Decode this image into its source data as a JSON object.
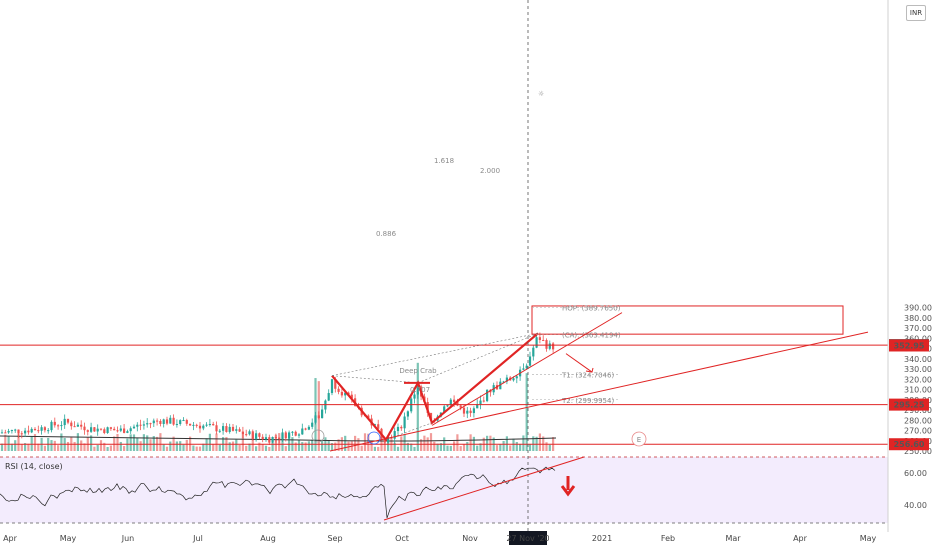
{
  "chart_data": {
    "type": "candlestick",
    "currency": "INR",
    "y_axis": {
      "ticks": [
        "390.00",
        "380.00",
        "370.00",
        "360.00",
        "350.00",
        "340.00",
        "330.00",
        "320.00",
        "310.00",
        "300.00",
        "290.00",
        "280.00",
        "270.00",
        "260.00",
        "250.00"
      ],
      "range": [
        245,
        395
      ]
    },
    "price_labels": [
      {
        "value": 353.3,
        "text": "353.30",
        "color": "#4a4a4a"
      },
      {
        "value": 352.95,
        "text": "352.95",
        "color": "#e02424"
      },
      {
        "value": 295.25,
        "text": "295.25",
        "color": "#e02424"
      },
      {
        "value": 256.6,
        "text": "256.60",
        "color": "#e02424"
      }
    ],
    "horizontal_levels": [
      353.3,
      295.25,
      256.6
    ],
    "x_axis": {
      "labels": [
        "Apr",
        "May",
        "Jun",
        "Jul",
        "Aug",
        "Sep",
        "Oct",
        "Nov",
        "27 Nov '20",
        "2021",
        "Feb",
        "Mar",
        "Apr",
        "May"
      ],
      "highlight": "27 Nov '20"
    },
    "pattern": {
      "name": "Deep Crab",
      "points": {
        "X": 323.5,
        "A": 261,
        "B": 316.5,
        "C": 277.5,
        "D": 364.8
      },
      "ratios": [
        "0.886",
        "1.618",
        "2.000",
        "0.707"
      ]
    },
    "annotations": {
      "hop": {
        "text": "HOP: (389.7650)",
        "value": 389.765
      },
      "d": {
        "text": "(CA): (363.4194)",
        "value": 363.42
      },
      "t1": {
        "text": "T1: (324.7046)",
        "value": 324.7
      },
      "t2": {
        "text": "T2: (299.9954)",
        "value": 300.0
      },
      "target_box": {
        "top": 391.5,
        "bottom": 364
      }
    },
    "indicator": {
      "name": "RSI (14, close)",
      "ticks": [
        "60.00",
        "40.00"
      ]
    },
    "markers": {
      "earnings": "E"
    },
    "colors": {
      "up": "#26a69a",
      "down": "#ef5350",
      "pattern": "#e02424",
      "rsi_bg": "#f3ecfd"
    }
  }
}
